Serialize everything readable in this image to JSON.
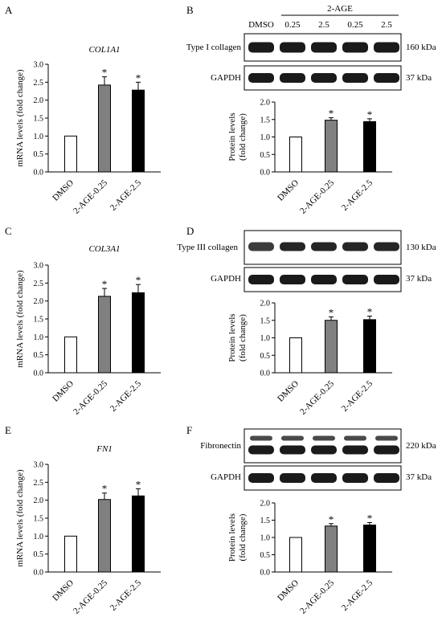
{
  "colors": {
    "dmso": "#ffffff",
    "low": "#808080",
    "high": "#000000",
    "axis": "#000000",
    "blot_bg": "#ffffff"
  },
  "marker": "*",
  "panels": {
    "A": {
      "letter": "A",
      "gene": "COL1A1"
    },
    "B": {
      "letter": "B",
      "group_label": "2-AGE",
      "lane_labels": [
        "DMSO",
        "0.25",
        "2.5",
        "0.25",
        "2.5"
      ],
      "blots": [
        {
          "name": "Type I collagen",
          "size": "160 kDa"
        },
        {
          "name": "GAPDH",
          "size": "37 kDa"
        }
      ]
    },
    "C": {
      "letter": "C",
      "gene": "COL3A1"
    },
    "D": {
      "letter": "D",
      "blots": [
        {
          "name": "Type III collagen",
          "size": "130 kDa"
        },
        {
          "name": "GAPDH",
          "size": "37 kDa"
        }
      ]
    },
    "E": {
      "letter": "E",
      "gene": "FN1"
    },
    "F": {
      "letter": "F",
      "blots": [
        {
          "name": "Fibronectin",
          "size": "220 kDa"
        },
        {
          "name": "GAPDH",
          "size": "37 kDa"
        }
      ]
    }
  },
  "chart_data": [
    {
      "panel": "A",
      "type": "bar",
      "title": "COL1A1",
      "ylabel": "mRNA levels (fold change)",
      "categories": [
        "DMSO",
        "2-AGE-0.25",
        "2-AGE-2.5"
      ],
      "values": [
        1.0,
        2.42,
        2.28
      ],
      "errors": [
        0,
        0.23,
        0.22
      ],
      "significant": [
        false,
        true,
        true
      ],
      "ylim": [
        0,
        3.0
      ],
      "yticks": [
        "0.0",
        "0.5",
        "1.0",
        "1.5",
        "2.0",
        "2.5",
        "3.0"
      ],
      "grid": false
    },
    {
      "panel": "B",
      "type": "bar",
      "title": "",
      "ylabel": "Protein levels (fold change)",
      "categories": [
        "DMSO",
        "2-AGE-0.25",
        "2-AGE-2.5"
      ],
      "values": [
        1.0,
        1.48,
        1.44
      ],
      "errors": [
        0,
        0.07,
        0.08
      ],
      "significant": [
        false,
        true,
        true
      ],
      "ylim": [
        0,
        2.0
      ],
      "yticks": [
        "0.0",
        "0.5",
        "1.0",
        "1.5",
        "2.0"
      ],
      "grid": false
    },
    {
      "panel": "C",
      "type": "bar",
      "title": "COL3A1",
      "ylabel": "mRNA levels (fold change)",
      "categories": [
        "DMSO",
        "2-AGE-0.25",
        "2-AGE-2.5"
      ],
      "values": [
        1.0,
        2.13,
        2.23
      ],
      "errors": [
        0,
        0.22,
        0.23
      ],
      "significant": [
        false,
        true,
        true
      ],
      "ylim": [
        0,
        3.0
      ],
      "yticks": [
        "0.0",
        "0.5",
        "1.0",
        "1.5",
        "2.0",
        "2.5",
        "3.0"
      ],
      "grid": false
    },
    {
      "panel": "D",
      "type": "bar",
      "title": "",
      "ylabel": "Protein levels (fold change)",
      "categories": [
        "DMSO",
        "2-AGE-0.25",
        "2-AGE-2.5"
      ],
      "values": [
        1.0,
        1.5,
        1.52
      ],
      "errors": [
        0,
        0.1,
        0.1
      ],
      "significant": [
        false,
        true,
        true
      ],
      "ylim": [
        0,
        2.0
      ],
      "yticks": [
        "0.0",
        "0.5",
        "1.0",
        "1.5",
        "2.0"
      ],
      "grid": false
    },
    {
      "panel": "E",
      "type": "bar",
      "title": "FN1",
      "ylabel": "mRNA levels (fold change)",
      "categories": [
        "DMSO",
        "2-AGE-0.25",
        "2-AGE-2.5"
      ],
      "values": [
        1.0,
        2.02,
        2.12
      ],
      "errors": [
        0,
        0.18,
        0.2
      ],
      "significant": [
        false,
        true,
        true
      ],
      "ylim": [
        0,
        3.0
      ],
      "yticks": [
        "0.0",
        "0.5",
        "1.0",
        "1.5",
        "2.0",
        "2.5",
        "3.0"
      ],
      "grid": false
    },
    {
      "panel": "F",
      "type": "bar",
      "title": "",
      "ylabel": "Protein levels (fold change)",
      "categories": [
        "DMSO",
        "2-AGE-0.25",
        "2-AGE-2.5"
      ],
      "values": [
        1.0,
        1.33,
        1.36
      ],
      "errors": [
        0,
        0.07,
        0.07
      ],
      "significant": [
        false,
        true,
        true
      ],
      "ylim": [
        0,
        2.0
      ],
      "yticks": [
        "0.0",
        "0.5",
        "1.0",
        "1.5",
        "2.0"
      ],
      "grid": false
    }
  ]
}
